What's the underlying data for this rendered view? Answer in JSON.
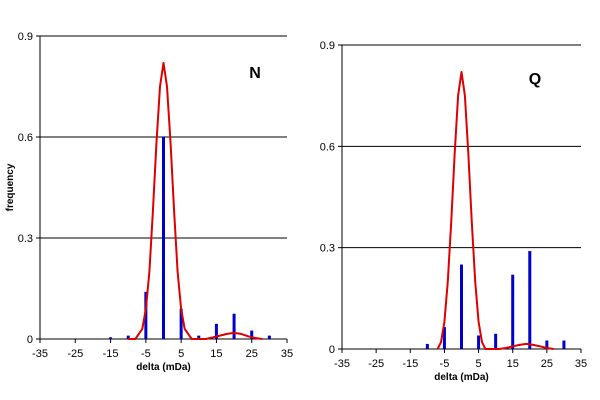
{
  "colors": {
    "bar": "#0000cc",
    "curve": "#dd0000",
    "grid": "#000000"
  },
  "chart_data": [
    {
      "type": "bar",
      "panel_label": "N",
      "xlabel": "delta (mDa)",
      "ylabel": "frequency",
      "xlim": [
        -35,
        35
      ],
      "ylim": [
        0,
        0.9
      ],
      "xticks": [
        -35,
        -25,
        -15,
        -5,
        5,
        15,
        25,
        35
      ],
      "yticks": [
        0,
        0.3,
        0.6,
        0.9
      ],
      "grid": "horizontal",
      "bars": {
        "x": [
          -15,
          -10,
          -5,
          0,
          5,
          10,
          15,
          20,
          25,
          30
        ],
        "values": [
          0.005,
          0.01,
          0.14,
          0.6,
          0.09,
          0.01,
          0.045,
          0.075,
          0.025,
          0.01
        ]
      },
      "curve": {
        "x": [
          -10,
          -8,
          -6,
          -5,
          -4,
          -3,
          -2,
          -1,
          0,
          1,
          2,
          3,
          4,
          5,
          6,
          8,
          10,
          12,
          14,
          16,
          18,
          20,
          22,
          24,
          26,
          28
        ],
        "y": [
          0,
          0,
          0.03,
          0.09,
          0.2,
          0.38,
          0.58,
          0.75,
          0.82,
          0.75,
          0.58,
          0.38,
          0.2,
          0.09,
          0.03,
          0,
          0,
          0,
          0.005,
          0.01,
          0.015,
          0.018,
          0.015,
          0.008,
          0.003,
          0
        ]
      }
    },
    {
      "type": "bar",
      "panel_label": "Q",
      "xlabel": "delta (mDa)",
      "ylabel": "",
      "xlim": [
        -35,
        35
      ],
      "ylim": [
        0,
        0.9
      ],
      "xticks": [
        -35,
        -25,
        -15,
        -5,
        5,
        15,
        25,
        35
      ],
      "yticks": [
        0,
        0.3,
        0.6,
        0.9
      ],
      "grid": "horizontal",
      "bars": {
        "x": [
          -10,
          -5,
          0,
          5,
          10,
          15,
          20,
          25,
          30
        ],
        "values": [
          0.015,
          0.065,
          0.25,
          0.04,
          0.045,
          0.22,
          0.29,
          0.025,
          0.025
        ]
      },
      "curve": {
        "x": [
          -7,
          -6,
          -5,
          -4,
          -3,
          -2,
          -1,
          0,
          1,
          2,
          3,
          4,
          5,
          6,
          7,
          9,
          11,
          13,
          15,
          17,
          19,
          21,
          23,
          25,
          27
        ],
        "y": [
          0,
          0.02,
          0.08,
          0.2,
          0.38,
          0.58,
          0.75,
          0.82,
          0.75,
          0.58,
          0.38,
          0.2,
          0.08,
          0.02,
          0,
          0,
          0,
          0.003,
          0.008,
          0.012,
          0.015,
          0.012,
          0.008,
          0.003,
          0
        ]
      }
    }
  ]
}
